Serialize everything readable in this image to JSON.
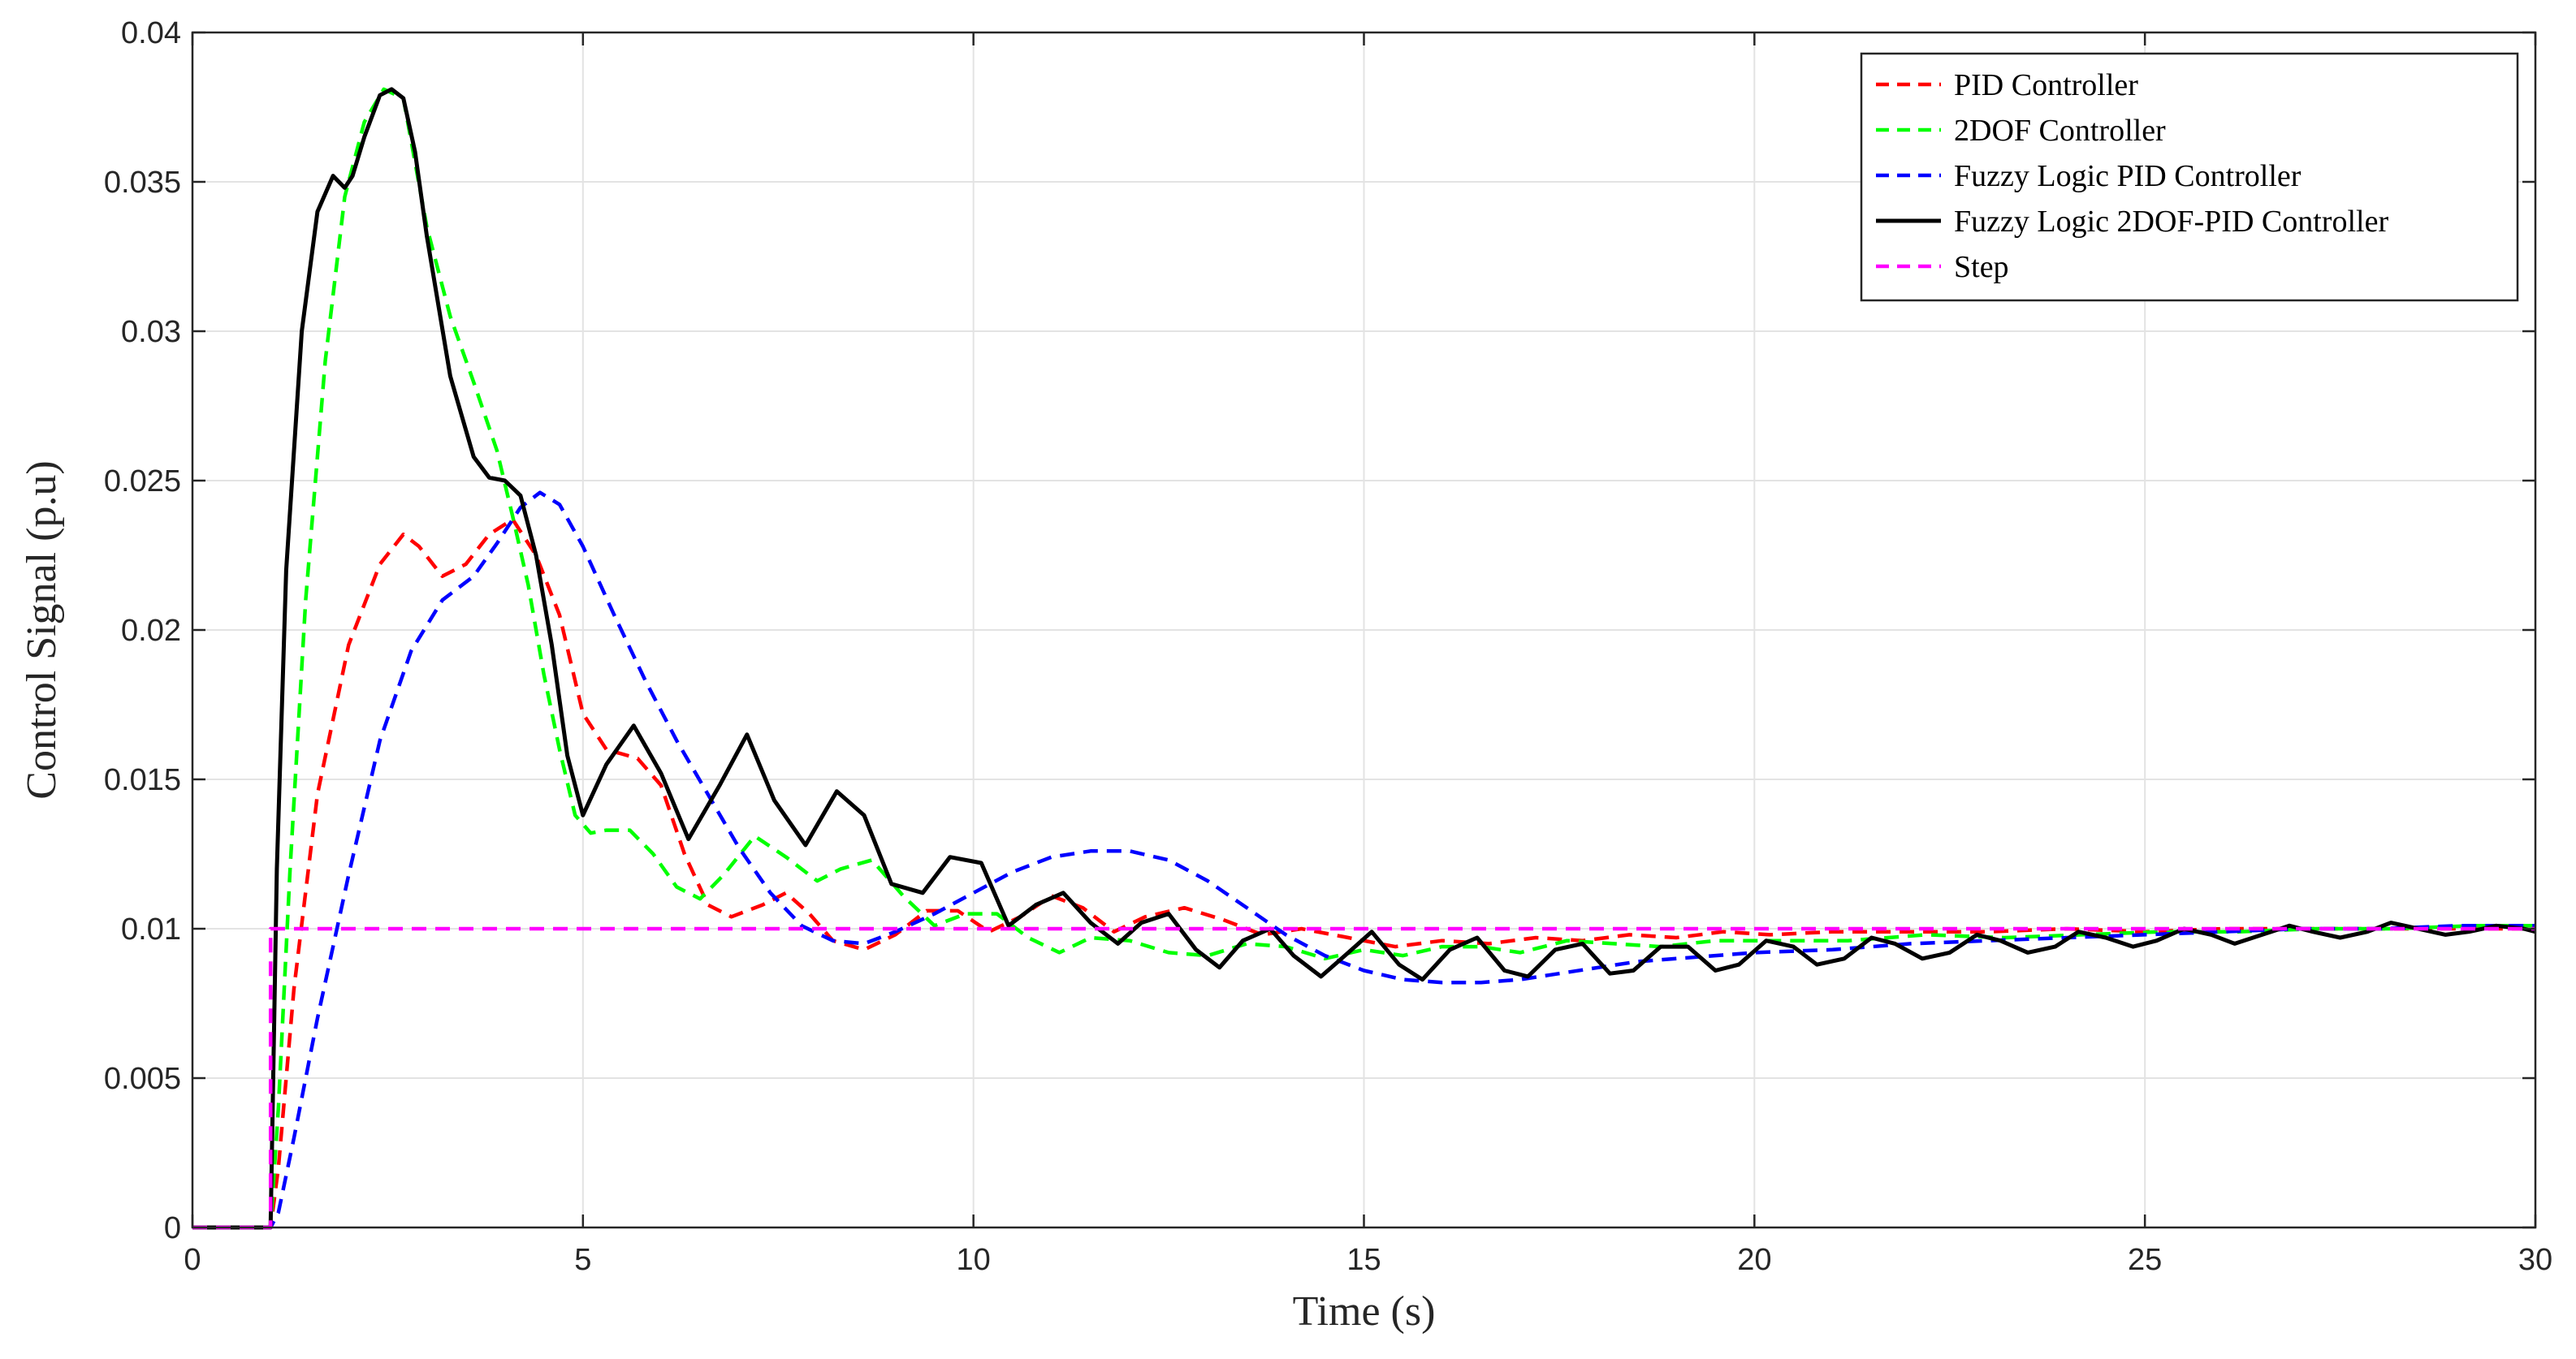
{
  "chart_data": {
    "type": "line",
    "xlabel": "Time (s)",
    "ylabel": "Control Signal (p.u)",
    "xlim": [
      0,
      30
    ],
    "ylim": [
      0,
      0.04
    ],
    "xticks": [
      0,
      5,
      10,
      15,
      20,
      25,
      30
    ],
    "xtick_labels": [
      "0",
      "5",
      "10",
      "15",
      "20",
      "25",
      "30"
    ],
    "yticks": [
      0,
      0.005,
      0.01,
      0.015,
      0.02,
      0.025,
      0.03,
      0.035,
      0.04
    ],
    "ytick_labels": [
      "0",
      "0.005",
      "0.01",
      "0.015",
      "0.02",
      "0.025",
      "0.03",
      "0.035",
      "0.04"
    ],
    "grid": true,
    "legend_position": "top-right",
    "series": [
      {
        "name": "PID Controller",
        "color": "#ff0000",
        "dash": "dashed",
        "x": [
          0,
          1.0,
          1.1,
          1.3,
          1.6,
          2.0,
          2.4,
          2.7,
          2.9,
          3.2,
          3.5,
          3.8,
          4.1,
          4.4,
          4.7,
          5.0,
          5.3,
          5.7,
          6.0,
          6.3,
          6.6,
          6.9,
          7.3,
          7.6,
          7.9,
          8.2,
          8.6,
          9.0,
          9.4,
          9.8,
          10.2,
          10.6,
          11.0,
          11.4,
          11.8,
          12.2,
          12.7,
          13.2,
          13.7,
          14.2,
          14.8,
          15.4,
          16.0,
          16.6,
          17.2,
          17.8,
          18.4,
          19.0,
          19.6,
          20.2,
          21.0,
          22.0,
          23.0,
          24.0,
          25.0,
          26.0,
          27.0,
          28.0,
          29.0,
          30.0
        ],
        "values": [
          0,
          0,
          0.002,
          0.008,
          0.0145,
          0.0195,
          0.0222,
          0.0232,
          0.0228,
          0.0218,
          0.0222,
          0.0232,
          0.0237,
          0.0225,
          0.0205,
          0.0172,
          0.016,
          0.0157,
          0.0148,
          0.0125,
          0.0108,
          0.0104,
          0.0108,
          0.0112,
          0.0105,
          0.0096,
          0.0093,
          0.0098,
          0.0106,
          0.0106,
          0.0099,
          0.0104,
          0.0111,
          0.0107,
          0.0099,
          0.0104,
          0.0107,
          0.0103,
          0.0098,
          0.01,
          0.0097,
          0.0094,
          0.0096,
          0.0095,
          0.0097,
          0.0096,
          0.0098,
          0.0097,
          0.0099,
          0.0098,
          0.0099,
          0.0099,
          0.0099,
          0.01,
          0.0099,
          0.01,
          0.01,
          0.01,
          0.01,
          0.01
        ]
      },
      {
        "name": "2DOF Controller",
        "color": "#00ff00",
        "dash": "dashed",
        "x": [
          0,
          1.0,
          1.1,
          1.25,
          1.45,
          1.7,
          1.95,
          2.2,
          2.45,
          2.7,
          3.0,
          3.3,
          3.6,
          3.9,
          4.1,
          4.3,
          4.5,
          4.7,
          4.9,
          5.1,
          5.3,
          5.6,
          5.9,
          6.2,
          6.5,
          6.8,
          7.2,
          7.6,
          8.0,
          8.3,
          8.7,
          9.1,
          9.5,
          9.9,
          10.3,
          10.7,
          11.1,
          11.5,
          12.0,
          12.5,
          13.0,
          13.5,
          14.0,
          14.5,
          15.0,
          15.5,
          16.0,
          16.5,
          17.0,
          17.6,
          18.2,
          18.8,
          19.5,
          20.3,
          21.2,
          22.2,
          23.2,
          24.2,
          25.2,
          26.2,
          27.2,
          28.2,
          29.2,
          30.0
        ],
        "values": [
          0,
          0,
          0.004,
          0.012,
          0.021,
          0.029,
          0.0345,
          0.037,
          0.0381,
          0.0378,
          0.0335,
          0.0305,
          0.0283,
          0.026,
          0.0238,
          0.0215,
          0.0185,
          0.016,
          0.0138,
          0.0132,
          0.0133,
          0.0133,
          0.0125,
          0.0114,
          0.011,
          0.0118,
          0.0131,
          0.0124,
          0.0116,
          0.012,
          0.0123,
          0.0111,
          0.0101,
          0.0105,
          0.0105,
          0.0097,
          0.0092,
          0.0097,
          0.0096,
          0.0092,
          0.0091,
          0.0095,
          0.0094,
          0.009,
          0.0093,
          0.0091,
          0.0094,
          0.0094,
          0.0092,
          0.0096,
          0.0095,
          0.0094,
          0.0096,
          0.0096,
          0.0096,
          0.0098,
          0.0097,
          0.0098,
          0.0099,
          0.0099,
          0.01,
          0.01,
          0.0101,
          0.0101
        ]
      },
      {
        "name": "Fuzzy Logic PID Controller",
        "color": "#0000ff",
        "dash": "dashed",
        "x": [
          0,
          1.0,
          1.1,
          1.3,
          1.6,
          2.0,
          2.4,
          2.8,
          3.2,
          3.6,
          3.9,
          4.2,
          4.45,
          4.7,
          5.0,
          5.4,
          5.8,
          6.2,
          6.6,
          7.0,
          7.4,
          7.8,
          8.2,
          8.6,
          9.0,
          9.5,
          10.0,
          10.5,
          11.0,
          11.5,
          12.0,
          12.5,
          13.0,
          13.5,
          14.0,
          14.5,
          15.0,
          15.5,
          16.0,
          16.5,
          17.0,
          17.5,
          18.0,
          18.5,
          19.0,
          20.0,
          21.0,
          22.0,
          23.0,
          24.0,
          25.0,
          26.0,
          27.0,
          28.0,
          29.0,
          30.0
        ],
        "values": [
          0,
          0,
          0.0005,
          0.003,
          0.007,
          0.0118,
          0.0163,
          0.0193,
          0.021,
          0.0218,
          0.0229,
          0.0241,
          0.0246,
          0.0242,
          0.0228,
          0.0205,
          0.0183,
          0.0163,
          0.0145,
          0.0127,
          0.0112,
          0.0101,
          0.0096,
          0.0095,
          0.0099,
          0.0105,
          0.0112,
          0.0119,
          0.0124,
          0.0126,
          0.0126,
          0.0123,
          0.0116,
          0.0107,
          0.0098,
          0.0091,
          0.0086,
          0.0083,
          0.0082,
          0.0082,
          0.0083,
          0.0085,
          0.0087,
          0.0089,
          0.009,
          0.0092,
          0.0093,
          0.0095,
          0.0096,
          0.0097,
          0.0098,
          0.0099,
          0.01,
          0.01,
          0.0101,
          0.0101
        ]
      },
      {
        "name": "Fuzzy Logic 2DOF-PID Controller",
        "color": "#000000",
        "dash": "solid",
        "x": [
          0,
          1.0,
          1.08,
          1.2,
          1.4,
          1.6,
          1.8,
          1.95,
          2.05,
          2.2,
          2.4,
          2.55,
          2.7,
          2.85,
          3.0,
          3.3,
          3.6,
          3.8,
          4.0,
          4.2,
          4.4,
          4.6,
          4.8,
          5.0,
          5.3,
          5.65,
          6.0,
          6.35,
          6.75,
          7.1,
          7.45,
          7.85,
          8.25,
          8.6,
          8.95,
          9.35,
          9.7,
          10.1,
          10.45,
          10.8,
          11.15,
          11.5,
          11.85,
          12.15,
          12.5,
          12.85,
          13.15,
          13.45,
          13.8,
          14.1,
          14.45,
          14.8,
          15.1,
          15.45,
          15.75,
          16.1,
          16.45,
          16.8,
          17.1,
          17.45,
          17.8,
          18.15,
          18.45,
          18.8,
          19.15,
          19.5,
          19.8,
          20.15,
          20.5,
          20.8,
          21.15,
          21.5,
          21.8,
          22.15,
          22.5,
          22.85,
          23.15,
          23.5,
          23.85,
          24.15,
          24.5,
          24.85,
          25.15,
          25.5,
          25.85,
          26.15,
          26.5,
          26.85,
          27.15,
          27.5,
          27.85,
          28.15,
          28.5,
          28.85,
          29.15,
          29.5,
          29.85,
          30.0
        ],
        "values": [
          0,
          0,
          0.012,
          0.022,
          0.03,
          0.034,
          0.0352,
          0.0348,
          0.0352,
          0.0365,
          0.0379,
          0.0381,
          0.0378,
          0.036,
          0.0332,
          0.0285,
          0.0258,
          0.0251,
          0.025,
          0.0245,
          0.0225,
          0.0195,
          0.0158,
          0.0138,
          0.0155,
          0.0168,
          0.0152,
          0.013,
          0.0148,
          0.0165,
          0.0143,
          0.0128,
          0.0146,
          0.0138,
          0.0115,
          0.0112,
          0.0124,
          0.0122,
          0.0101,
          0.0108,
          0.0112,
          0.0102,
          0.0095,
          0.0102,
          0.0105,
          0.0093,
          0.0087,
          0.0096,
          0.01,
          0.0091,
          0.0084,
          0.0092,
          0.0099,
          0.0088,
          0.0083,
          0.0093,
          0.0097,
          0.0086,
          0.0084,
          0.0093,
          0.0095,
          0.0085,
          0.0086,
          0.0094,
          0.0094,
          0.0086,
          0.0088,
          0.0096,
          0.0094,
          0.0088,
          0.009,
          0.0097,
          0.0095,
          0.009,
          0.0092,
          0.0098,
          0.0096,
          0.0092,
          0.0094,
          0.0099,
          0.0097,
          0.0094,
          0.0096,
          0.01,
          0.0098,
          0.0095,
          0.0098,
          0.0101,
          0.0099,
          0.0097,
          0.0099,
          0.0102,
          0.01,
          0.0098,
          0.0099,
          0.0101,
          0.01,
          0.0099
        ]
      },
      {
        "name": "Step",
        "color": "#ff00ff",
        "dash": "dashed",
        "x": [
          0,
          1.0,
          1.0,
          30.0
        ],
        "values": [
          0,
          0,
          0.01,
          0.01
        ]
      }
    ]
  }
}
